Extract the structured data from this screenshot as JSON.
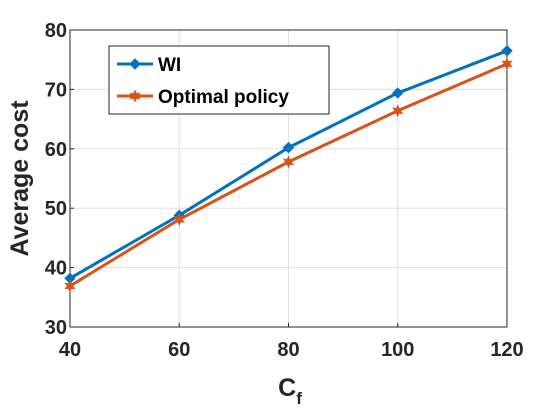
{
  "chart_data": {
    "type": "line",
    "x": [
      40,
      60,
      80,
      100,
      120
    ],
    "xlim": [
      40,
      120
    ],
    "ylim": [
      30,
      80
    ],
    "xticks": [
      40,
      60,
      80,
      100,
      120
    ],
    "yticks": [
      30,
      40,
      50,
      60,
      70,
      80
    ],
    "xlabel_main": "C",
    "xlabel_sub": "f",
    "ylabel": "Average cost",
    "grid": true,
    "legend_position": "top-left",
    "series": [
      {
        "name": "WI",
        "color": "#0072BD",
        "marker": "diamond",
        "values": [
          38.2,
          48.8,
          60.2,
          69.4,
          76.5
        ]
      },
      {
        "name": "Optimal policy",
        "color": "#D95319",
        "marker": "hexagram",
        "values": [
          36.9,
          48.1,
          57.8,
          66.4,
          74.3
        ]
      }
    ]
  }
}
